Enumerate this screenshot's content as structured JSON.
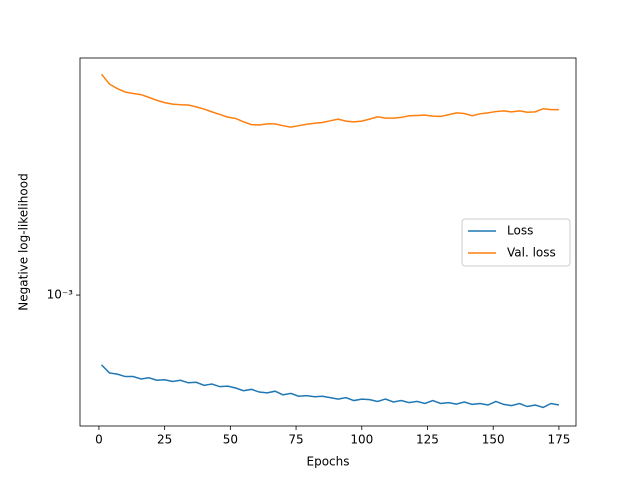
{
  "chart_data": {
    "type": "line",
    "xlabel": "Epochs",
    "ylabel": "Negative log-likelihood",
    "x": [
      1,
      4,
      7,
      10,
      13,
      16,
      19,
      22,
      25,
      28,
      31,
      34,
      37,
      40,
      43,
      46,
      49,
      52,
      55,
      58,
      61,
      64,
      67,
      70,
      73,
      76,
      79,
      82,
      85,
      88,
      91,
      94,
      97,
      100,
      103,
      106,
      109,
      112,
      115,
      118,
      121,
      124,
      127,
      130,
      133,
      136,
      139,
      142,
      145,
      148,
      151,
      154,
      157,
      160,
      163,
      166,
      169,
      172,
      175
    ],
    "series": [
      {
        "name": "Loss",
        "color": "#1f77b4",
        "values": [
          0.000585,
          0.00055,
          0.000545,
          0.000535,
          0.000535,
          0.000525,
          0.00053,
          0.00052,
          0.000522,
          0.000515,
          0.00052,
          0.00051,
          0.000512,
          0.0005,
          0.000505,
          0.000495,
          0.000497,
          0.00049,
          0.00048,
          0.000485,
          0.000475,
          0.000472,
          0.000478,
          0.000465,
          0.00047,
          0.00046,
          0.000462,
          0.000458,
          0.00046,
          0.000455,
          0.00045,
          0.000455,
          0.000445,
          0.00045,
          0.000448,
          0.000442,
          0.00045,
          0.00044,
          0.000445,
          0.000438,
          0.000442,
          0.000435,
          0.000445,
          0.000435,
          0.000438,
          0.000433,
          0.00044,
          0.000432,
          0.000435,
          0.00043,
          0.000442,
          0.000432,
          0.000428,
          0.000435,
          0.000425,
          0.00043,
          0.000422,
          0.000435,
          0.00043
        ]
      },
      {
        "name": "Val. loss",
        "color": "#ff7f0e",
        "values": [
          0.00545,
          0.00505,
          0.00488,
          0.00475,
          0.0047,
          0.00466,
          0.00456,
          0.00446,
          0.00438,
          0.00433,
          0.00431,
          0.0043,
          0.00424,
          0.00417,
          0.00408,
          0.004,
          0.00392,
          0.00388,
          0.00378,
          0.0037,
          0.00369,
          0.00372,
          0.00372,
          0.00367,
          0.00363,
          0.00367,
          0.00371,
          0.00374,
          0.00376,
          0.00381,
          0.00386,
          0.0038,
          0.00378,
          0.0038,
          0.00386,
          0.00393,
          0.00389,
          0.00389,
          0.00391,
          0.00396,
          0.00397,
          0.00398,
          0.00395,
          0.00394,
          0.00399,
          0.00405,
          0.00403,
          0.00396,
          0.00402,
          0.00405,
          0.00409,
          0.00411,
          0.00408,
          0.00411,
          0.00407,
          0.00408,
          0.00418,
          0.00415,
          0.00415
        ]
      }
    ],
    "xlim": [
      -7.2,
      181.5
    ],
    "xticks": [
      0,
      25,
      50,
      75,
      100,
      125,
      150,
      175
    ],
    "ylim": [
      0.000366,
      0.00617
    ],
    "yticks": [
      {
        "value": 0.001,
        "label": "10⁻³"
      }
    ],
    "yscale": "log",
    "grid": false,
    "legend": "center right"
  }
}
